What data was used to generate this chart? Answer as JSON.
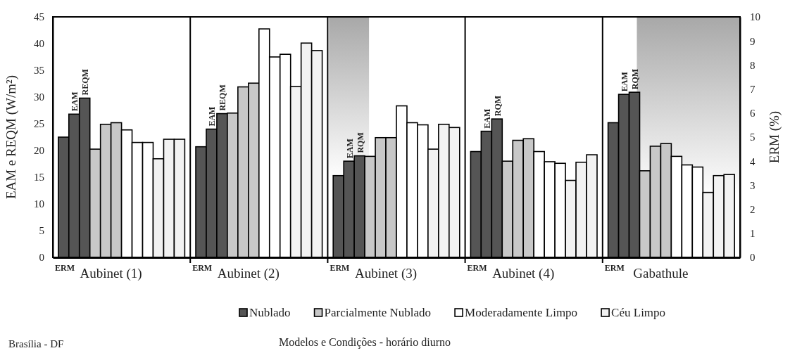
{
  "chart_data": {
    "type": "bar",
    "xlabel": "Modelos e Condições - horário diurno",
    "ylabel": "EAM e REQM (W/m²)",
    "y2label": "ERM (%)",
    "categories": [
      "Aubinet (1)",
      "Aubinet (2)",
      "Aubinet (3)",
      "Aubinet (4)",
      "Gabathule"
    ],
    "series": [
      {
        "color": "#555555",
        "axis": "y2",
        "values": [
          5.0,
          4.6,
          3.4,
          4.4,
          5.6
        ]
      },
      {
        "name": "Nublado",
        "color": "#555555",
        "values": [
          26.8,
          24.0,
          18.0,
          23.6,
          30.5
        ]
      },
      {
        "color": "#555555",
        "values": [
          29.8,
          26.9,
          19.0,
          25.9,
          30.9
        ]
      },
      {
        "color": "#c8c8c8",
        "axis": "y2",
        "values": [
          4.5,
          6.0,
          4.2,
          4.0,
          3.6
        ]
      },
      {
        "name": "Parcialmente Nublado",
        "color": "#c8c8c8",
        "values": [
          24.9,
          31.9,
          22.4,
          21.9,
          20.8
        ]
      },
      {
        "color": "#c8c8c8",
        "values": [
          25.2,
          32.6,
          22.4,
          22.2,
          21.3
        ]
      },
      {
        "color": "#ffffff",
        "axis": "y2",
        "values": [
          5.3,
          9.5,
          6.3,
          4.4,
          4.2
        ]
      },
      {
        "name": "Moderadamente Limpo",
        "color": "#ffffff",
        "values": [
          21.5,
          37.5,
          25.2,
          17.9,
          17.3
        ]
      },
      {
        "color": "#ffffff",
        "values": [
          21.5,
          38.0,
          24.8,
          17.6,
          16.9
        ]
      },
      {
        "color": "#f2f2f2",
        "axis": "y2",
        "values": [
          4.1,
          7.1,
          4.5,
          3.2,
          2.7
        ]
      },
      {
        "name": "Céu Limpo",
        "color": "#f2f2f2",
        "values": [
          22.1,
          40.1,
          24.9,
          17.8,
          15.3
        ]
      },
      {
        "color": "#f2f2f2",
        "values": [
          22.1,
          38.7,
          24.3,
          19.2,
          15.5
        ]
      }
    ],
    "ylim": [
      0,
      45
    ],
    "yticks": [
      0,
      5,
      10,
      15,
      20,
      25,
      30,
      35,
      40,
      45
    ],
    "y2lim": [
      0,
      10
    ],
    "y2ticks": [
      0,
      1,
      2,
      3,
      4,
      5,
      6,
      7,
      8,
      9,
      10
    ],
    "legend": "bottom",
    "grid": false,
    "annotations": [
      "Brasília - DF",
      "ERM",
      "ERM",
      "ERM",
      "ERM",
      "ERM",
      "EAM",
      "REQM",
      "EAM",
      "REQM",
      "EAM",
      "RQM",
      "EAM",
      "RQM",
      "EAM",
      "RQM"
    ]
  }
}
